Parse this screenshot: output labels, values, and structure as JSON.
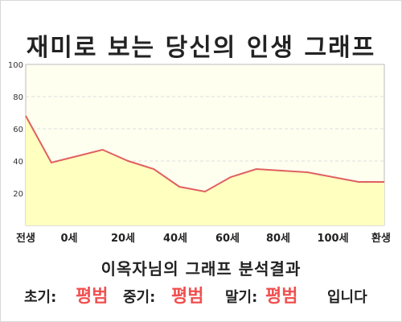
{
  "page_title": "재미로 보는 당신의 인생 그래프",
  "subtitle": "이옥자님의 그래프 분석결과",
  "result": {
    "early_label": "초기:",
    "early_value": "평범",
    "middle_label": "중기:",
    "middle_value": "평범",
    "late_label": "말기:",
    "late_value": "평범",
    "ending": "입니다"
  },
  "colors": {
    "line": "#e06060",
    "fill": "#ffffc0",
    "plot_bg": "#fffff0",
    "accent": "#f05050"
  },
  "chart_data": {
    "type": "area",
    "title": "재미로 보는 당신의 인생 그래프",
    "xlabel": "",
    "ylabel": "",
    "x_ticks": [
      "전생",
      "0세",
      "20세",
      "40세",
      "60세",
      "80세",
      "100세",
      "환생"
    ],
    "x": [
      0,
      1,
      2,
      3,
      4,
      5,
      6,
      7,
      8,
      9,
      10,
      11,
      12,
      13,
      14
    ],
    "values": [
      68,
      39,
      43,
      47,
      40,
      35,
      24,
      21,
      30,
      35,
      34,
      33,
      30,
      27,
      27
    ],
    "ylim": [
      0,
      100
    ],
    "y_ticks": [
      20,
      40,
      60,
      80,
      100
    ],
    "grid": true,
    "legend": "none"
  }
}
